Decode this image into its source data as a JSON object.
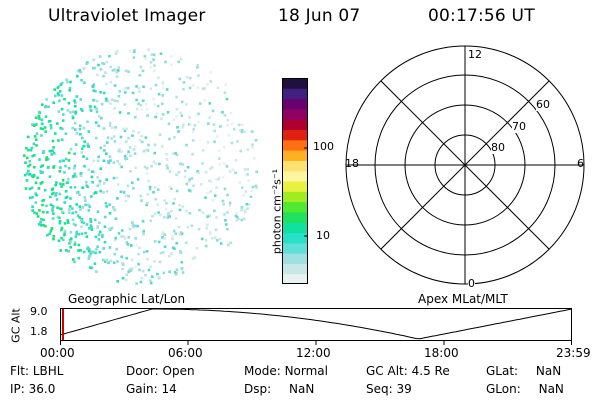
{
  "header": {
    "title": "Ultraviolet Imager",
    "date": "18 Jun 07",
    "time": "00:17:56 UT"
  },
  "colorbar": {
    "unit_label": "photon cm⁻²s⁻¹",
    "ticks": [
      "100",
      "10"
    ],
    "colors": [
      "#e8f2f2",
      "#c8e8e8",
      "#9fe0e0",
      "#5ce0d8",
      "#28e0c8",
      "#10e0a0",
      "#20e060",
      "#50e830",
      "#a0ec20",
      "#e8f040",
      "#fff4a0",
      "#ffe070",
      "#ffb020",
      "#ff7010",
      "#e02010",
      "#b00030",
      "#900060",
      "#6a0070",
      "#402080",
      "#201040"
    ]
  },
  "polar": {
    "mlt_labels": [
      "12",
      "6",
      "0",
      "18"
    ],
    "mlat_labels": [
      "60",
      "70",
      "80"
    ]
  },
  "timeline": {
    "left_axis_label": "GC Alt",
    "y_ticks": [
      "9.0",
      "1.8"
    ],
    "geo_label": "Geographic Lat/Lon",
    "apex_label": "Apex MLat/MLT",
    "x_ticks": [
      "00:00",
      "06:00",
      "12:00",
      "18:00",
      "23:59"
    ]
  },
  "status": {
    "flt_label": "Flt:",
    "flt_value": "LBHL",
    "ip_label": "IP:",
    "ip_value": "36.0",
    "door_label": "Door:",
    "door_value": "Open",
    "gain_label": "Gain:",
    "gain_value": "14",
    "mode_label": "Mode:",
    "mode_value": "Normal",
    "dsp_label": "Dsp:",
    "dsp_value": "NaN",
    "gcalt_label": "GC Alt:",
    "gcalt_value": "4.5 Re",
    "seq_label": "Seq:",
    "seq_value": "39",
    "glat_label": "GLat:",
    "glat_value": "NaN",
    "glon_label": "GLon:",
    "glon_value": "NaN"
  }
}
